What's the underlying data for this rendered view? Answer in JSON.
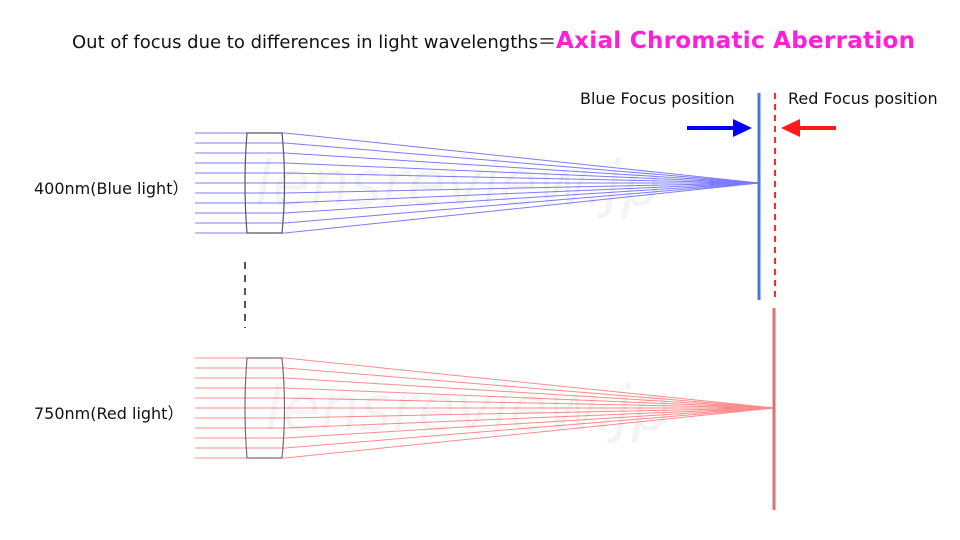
{
  "title": {
    "lead": "Out of focus due to differences in light wavelengths＝",
    "emphasis": "Axial Chromatic Aberration",
    "emphasis_color": "#ff1fd8"
  },
  "labels": {
    "blue_focus": "Blue Focus position",
    "red_focus": "Red Focus position",
    "blue_light": "400nm(Blue light）",
    "red_light": "750nm(Red light）"
  },
  "watermark": "lensreview.jp",
  "colors": {
    "blue_ray": "#7b7bff",
    "red_ray": "#ff8a8a",
    "blue_plane": "#4a78d8",
    "red_plane": "#e07070",
    "red_dashed": "#ff2a2a",
    "blue_arrow": "#0000ff",
    "red_arrow": "#ff1a1a",
    "lens": "#555566"
  }
}
